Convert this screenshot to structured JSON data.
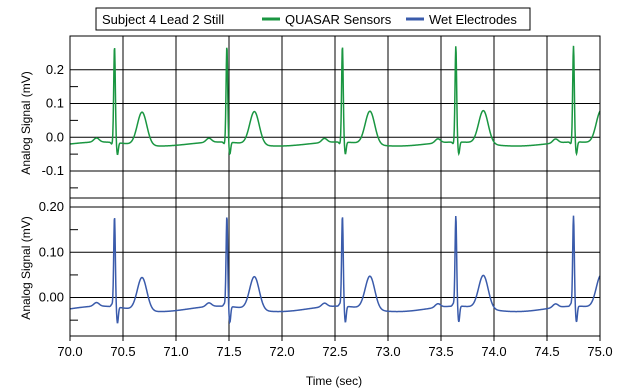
{
  "chart_data": {
    "type": "line",
    "legend": {
      "placement": "top",
      "title": "Subject 4 Lead 2 Still",
      "entries": [
        {
          "label": "QUASAR Sensors",
          "color": "#1a9641"
        },
        {
          "label": "Wet Electrodes",
          "color": "#3a5bab"
        }
      ]
    },
    "xlabel": "Time (sec)",
    "xlim": [
      70.0,
      75.0
    ],
    "xticks": [
      "70.0",
      "70.5",
      "71.0",
      "71.5",
      "72.0",
      "72.5",
      "73.0",
      "73.5",
      "74.0",
      "74.5",
      "75.0"
    ],
    "xtick_values": [
      70.0,
      70.5,
      71.0,
      71.5,
      72.0,
      72.5,
      73.0,
      73.5,
      74.0,
      74.5,
      75.0
    ],
    "grid": true,
    "beat_times": [
      70.42,
      71.48,
      72.57,
      73.64,
      74.75
    ],
    "panels": [
      {
        "name": "QUASAR Sensors",
        "ylabel": "Analog Signal (mV)",
        "ylim": [
          -0.18,
          0.3
        ],
        "yticks": [
          "0.2",
          "0.1",
          "0.0",
          "-0.1"
        ],
        "ytick_values": [
          0.2,
          0.1,
          0.0,
          -0.1
        ],
        "color": "#1a9641",
        "beat": {
          "baseline": -0.02,
          "r_peak": 0.265,
          "s_trough": -0.055,
          "q_dip": -0.025,
          "p_height": 0.012,
          "t_peak": 0.078
        }
      },
      {
        "name": "Wet Electrodes",
        "ylabel": "Analog Signal (mV)",
        "ylim": [
          -0.085,
          0.22
        ],
        "yticks": [
          "0.20",
          "0.10",
          "0.00"
        ],
        "ytick_values": [
          0.2,
          0.1,
          0.0
        ],
        "color": "#3a5bab",
        "beat": {
          "baseline": -0.025,
          "r_peak": 0.175,
          "s_trough": -0.06,
          "q_dip": -0.02,
          "p_height": 0.008,
          "t_peak": 0.048
        }
      }
    ]
  }
}
